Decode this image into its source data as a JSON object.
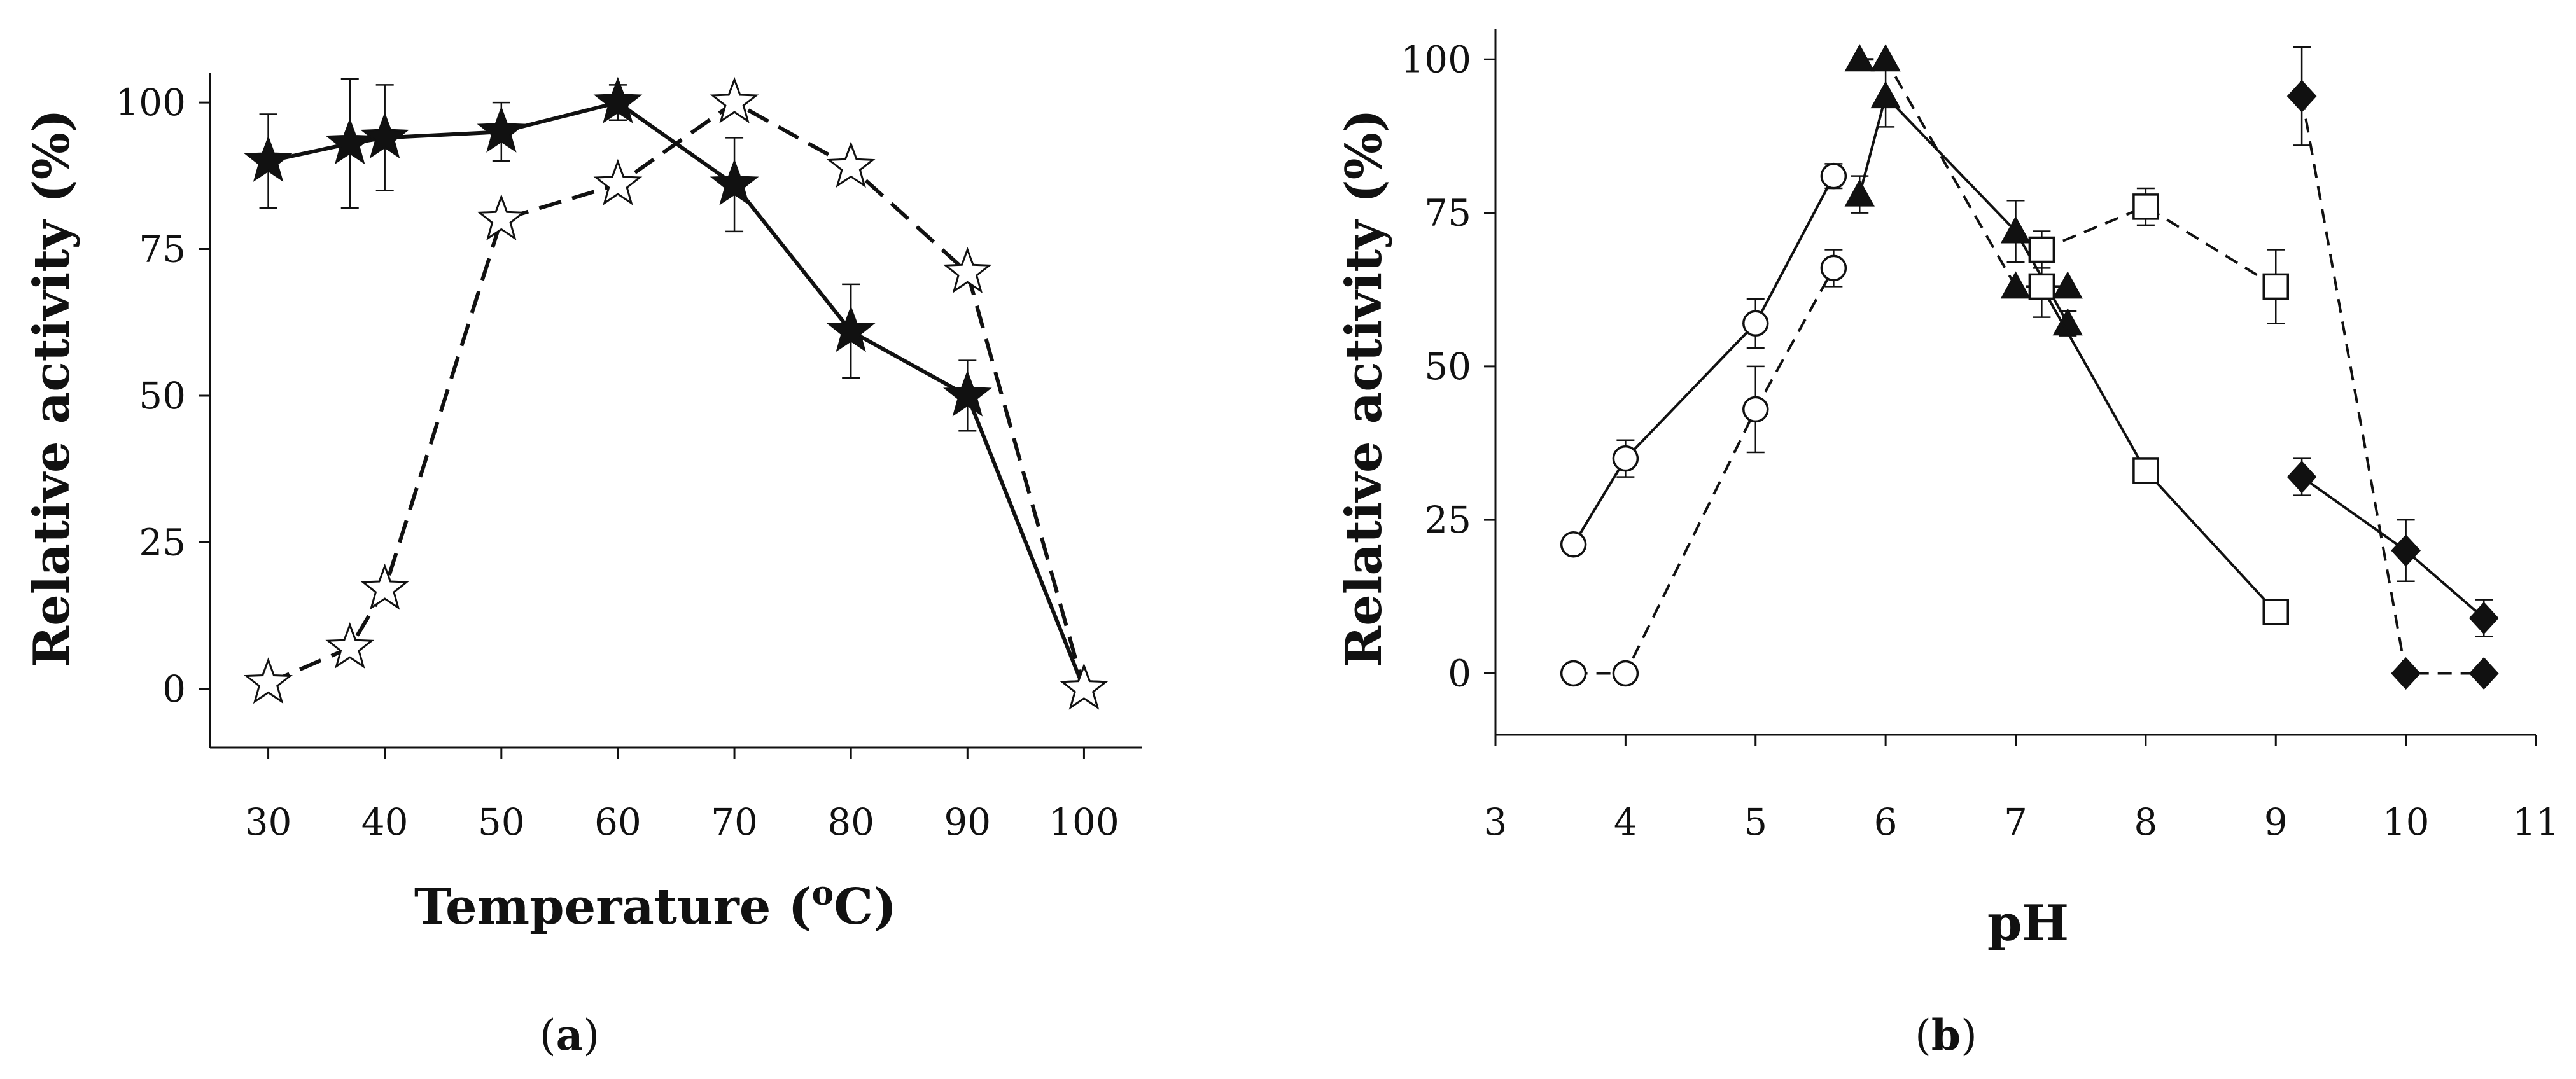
{
  "panel_labels": {
    "a": "a",
    "b": "b"
  },
  "chart_data": [
    {
      "type": "line",
      "panel": "a",
      "title": "",
      "xlabel_text": "Temperature (",
      "xlabel_degree": "o",
      "xlabel_unit": "C)",
      "ylabel": "Relative activity (%)",
      "xlim": [
        25,
        105
      ],
      "ylim": [
        -10,
        105
      ],
      "xticks": [
        "30",
        "40",
        "50",
        "60",
        "70",
        "80",
        "90",
        "100"
      ],
      "yticks": [
        "0",
        "25",
        "50",
        "75",
        "100"
      ],
      "series": [
        {
          "name": "filled stars (solid line)",
          "marker": "star-filled",
          "line": "solid",
          "x": [
            30,
            37,
            40,
            50,
            60,
            70,
            80,
            90,
            100
          ],
          "values": [
            90,
            93,
            94,
            95,
            100,
            86,
            61,
            50,
            0
          ],
          "err": [
            8,
            11,
            9,
            5,
            3,
            8,
            8,
            6,
            0
          ]
        },
        {
          "name": "open stars (dashed line)",
          "marker": "star-open",
          "line": "dashed",
          "x": [
            30,
            37,
            40,
            50,
            60,
            70,
            80,
            90,
            100
          ],
          "values": [
            1,
            7,
            17,
            80,
            86,
            100,
            89,
            71,
            0
          ],
          "err": [
            0,
            0,
            0,
            0,
            0,
            0,
            0,
            0,
            0
          ]
        }
      ]
    },
    {
      "type": "line",
      "panel": "b",
      "title": "",
      "xlabel": "pH",
      "ylabel": "Relative activity (%)",
      "xlim": [
        3,
        11
      ],
      "ylim": [
        -10,
        105
      ],
      "xticks": [
        "3",
        "4",
        "5",
        "6",
        "7",
        "8",
        "9",
        "10",
        "11"
      ],
      "yticks": [
        "0",
        "25",
        "50",
        "75",
        "100"
      ],
      "series": [
        {
          "name": "open circles (solid line)",
          "marker": "circle-open",
          "line": "solid",
          "x": [
            3.6,
            4.0,
            5.0,
            5.6
          ],
          "values": [
            21,
            35,
            57,
            81
          ],
          "err": [
            0,
            3,
            4,
            2
          ]
        },
        {
          "name": "open circles (dashed line)",
          "marker": "circle-open",
          "line": "dashed",
          "x": [
            3.6,
            4.0,
            5.0,
            5.6
          ],
          "values": [
            0,
            0,
            43,
            66
          ],
          "err": [
            0,
            0,
            7,
            3
          ]
        },
        {
          "name": "filled triangles (solid line)",
          "marker": "triangle-filled",
          "line": "solid",
          "x": [
            5.8,
            6.0,
            7.0,
            7.4
          ],
          "values": [
            78,
            94,
            72,
            57
          ],
          "err": [
            3,
            5,
            5,
            2
          ]
        },
        {
          "name": "filled triangles (dashed line)",
          "marker": "triangle-filled",
          "line": "dashed",
          "x": [
            5.8,
            6.0,
            7.0,
            7.4
          ],
          "values": [
            100,
            100,
            63,
            63
          ],
          "err": [
            0,
            0,
            0,
            0
          ]
        },
        {
          "name": "open squares (solid line)",
          "marker": "square-open",
          "line": "solid",
          "x": [
            7.2,
            8.0,
            9.0
          ],
          "values": [
            63,
            33,
            10
          ],
          "err": [
            5,
            0,
            0
          ]
        },
        {
          "name": "open squares (dashed line)",
          "marker": "square-open",
          "line": "dashed",
          "x": [
            7.2,
            8.0,
            9.0
          ],
          "values": [
            69,
            76,
            63
          ],
          "err": [
            3,
            3,
            6
          ]
        },
        {
          "name": "filled diamonds (solid line)",
          "marker": "diamond-filled",
          "line": "solid",
          "x": [
            9.2,
            10.0,
            10.6
          ],
          "values": [
            32,
            20,
            9
          ],
          "err": [
            3,
            5,
            3
          ]
        },
        {
          "name": "filled diamonds (dashed line)",
          "marker": "diamond-filled",
          "line": "dashed",
          "x": [
            9.2,
            10.0,
            10.6
          ],
          "values": [
            94,
            0,
            0
          ],
          "err": [
            8,
            0,
            0
          ]
        }
      ]
    }
  ]
}
